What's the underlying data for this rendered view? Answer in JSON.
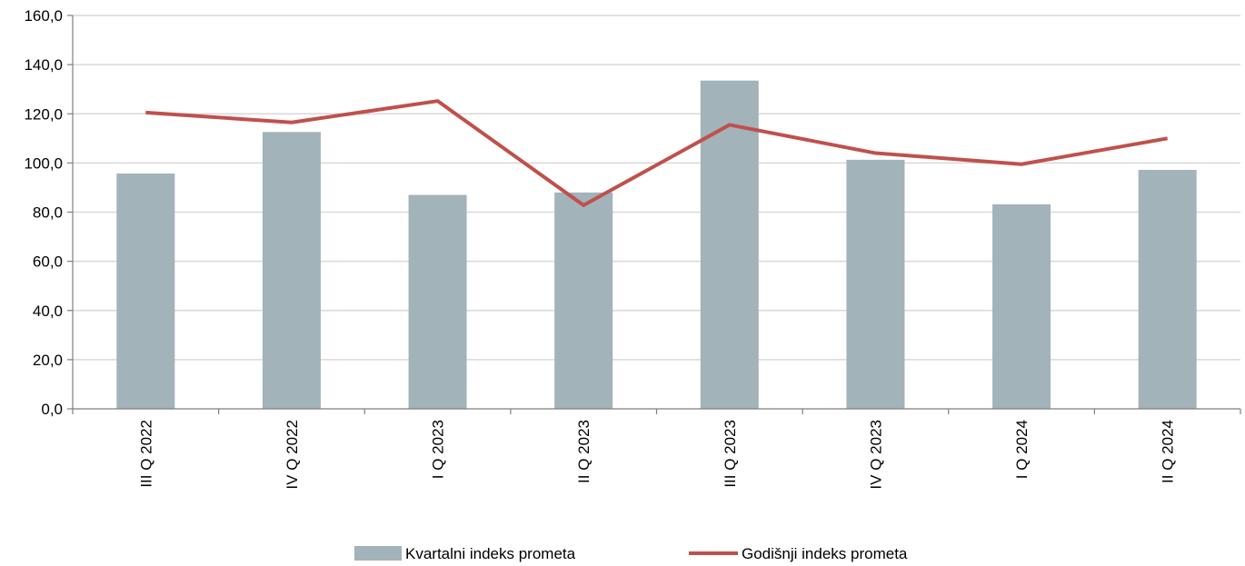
{
  "chart_data": {
    "type": "bar",
    "categories": [
      "III Q 2022",
      "IV Q 2022",
      "I Q 2023",
      "II Q 2023",
      "III Q 2023",
      "IV Q 2023",
      "I Q 2024",
      "II Q 2024"
    ],
    "series": [
      {
        "name": "Kvartalni indeks prometa",
        "type": "bar",
        "color": "#a2b3b9",
        "values": [
          95.7,
          112.6,
          87.0,
          88.0,
          133.5,
          101.3,
          83.2,
          97.2
        ]
      },
      {
        "name": "Godišnji indeks prometa",
        "type": "line",
        "color": "#c0504d",
        "values": [
          120.5,
          116.5,
          125.2,
          82.8,
          115.5,
          104.0,
          99.5,
          110.0
        ]
      }
    ],
    "ylim": [
      0,
      160
    ],
    "yticks": [
      "0,0",
      "20,0",
      "40,0",
      "60,0",
      "80,0",
      "100,0",
      "120,0",
      "140,0",
      "160,0"
    ],
    "ytick_step": 20,
    "grid": true,
    "legend_position": "bottom"
  }
}
